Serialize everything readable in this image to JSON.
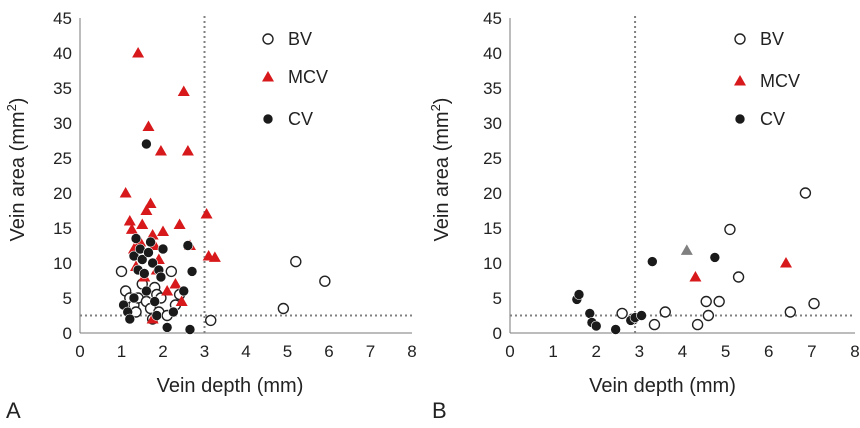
{
  "chart_data": [
    {
      "panel_label": "A",
      "type": "scatter",
      "xlabel": "Vein depth (mm)",
      "ylabel_main": "Vein area (mm",
      "ylabel_sup": "2",
      "ylabel_close": ")",
      "xlim": [
        0,
        8
      ],
      "ylim": [
        0,
        45
      ],
      "xticks": [
        "0",
        "1",
        "2",
        "3",
        "4",
        "5",
        "6",
        "7",
        "8"
      ],
      "yticks": [
        "0",
        "5",
        "10",
        "15",
        "20",
        "25",
        "30",
        "35",
        "40",
        "45"
      ],
      "ref_x": 3.0,
      "ref_y": 2.5,
      "legend_position": "top-right",
      "series": [
        {
          "name": "BV",
          "marker": "open-circle",
          "color": "#222222",
          "points": [
            [
              1.0,
              8.8
            ],
            [
              1.1,
              6.0
            ],
            [
              1.2,
              5.0
            ],
            [
              1.3,
              4.0
            ],
            [
              1.35,
              3.0
            ],
            [
              1.4,
              5.0
            ],
            [
              1.5,
              7.0
            ],
            [
              1.6,
              4.5
            ],
            [
              1.7,
              3.5
            ],
            [
              1.75,
              2.0
            ],
            [
              1.8,
              6.5
            ],
            [
              1.85,
              5.5
            ],
            [
              1.9,
              3.0
            ],
            [
              1.95,
              5.0
            ],
            [
              2.1,
              2.5
            ],
            [
              2.2,
              8.8
            ],
            [
              2.3,
              4.0
            ],
            [
              2.4,
              5.5
            ],
            [
              3.15,
              1.8
            ],
            [
              4.9,
              3.5
            ],
            [
              5.2,
              10.2
            ],
            [
              5.9,
              7.4
            ]
          ]
        },
        {
          "name": "MCV",
          "marker": "triangle",
          "color": "#d7191c",
          "points": [
            [
              1.1,
              20.0
            ],
            [
              1.2,
              16.0
            ],
            [
              1.25,
              14.8
            ],
            [
              1.3,
              12.0
            ],
            [
              1.35,
              9.5
            ],
            [
              1.4,
              40.0
            ],
            [
              1.45,
              13.0
            ],
            [
              1.5,
              15.5
            ],
            [
              1.55,
              8.0
            ],
            [
              1.6,
              17.5
            ],
            [
              1.65,
              29.5
            ],
            [
              1.7,
              18.5
            ],
            [
              1.75,
              14.0
            ],
            [
              1.8,
              12.5
            ],
            [
              1.85,
              9.0
            ],
            [
              1.9,
              10.5
            ],
            [
              1.95,
              26.0
            ],
            [
              2.0,
              14.5
            ],
            [
              2.1,
              6.0
            ],
            [
              2.3,
              7.0
            ],
            [
              2.4,
              15.5
            ],
            [
              2.5,
              34.5
            ],
            [
              2.6,
              26.0
            ],
            [
              2.65,
              12.5
            ],
            [
              3.05,
              17.0
            ],
            [
              3.1,
              11.0
            ],
            [
              3.25,
              10.8
            ],
            [
              2.45,
              4.5
            ],
            [
              1.75,
              2.0
            ]
          ]
        },
        {
          "name": "CV",
          "marker": "filled-circle",
          "color": "#1a1a1a",
          "points": [
            [
              1.05,
              4.0
            ],
            [
              1.15,
              3.0
            ],
            [
              1.2,
              2.0
            ],
            [
              1.3,
              11.0
            ],
            [
              1.35,
              13.5
            ],
            [
              1.4,
              9.0
            ],
            [
              1.45,
              12.0
            ],
            [
              1.5,
              10.5
            ],
            [
              1.55,
              8.5
            ],
            [
              1.6,
              27.0
            ],
            [
              1.65,
              11.5
            ],
            [
              1.7,
              13.0
            ],
            [
              1.75,
              10.0
            ],
            [
              1.8,
              4.5
            ],
            [
              1.85,
              2.5
            ],
            [
              1.9,
              9.0
            ],
            [
              1.95,
              8.0
            ],
            [
              2.0,
              12.0
            ],
            [
              2.1,
              0.8
            ],
            [
              2.25,
              3.0
            ],
            [
              2.5,
              6.0
            ],
            [
              2.6,
              12.5
            ],
            [
              2.65,
              0.5
            ],
            [
              2.7,
              8.8
            ],
            [
              1.3,
              5.0
            ],
            [
              1.6,
              6.0
            ]
          ]
        }
      ]
    },
    {
      "panel_label": "B",
      "type": "scatter",
      "xlabel": "Vein depth (mm)",
      "ylabel_main": "Vein area (mm",
      "ylabel_sup": "2",
      "ylabel_close": ")",
      "xlim": [
        0,
        8
      ],
      "ylim": [
        0,
        45
      ],
      "xticks": [
        "0",
        "1",
        "2",
        "3",
        "4",
        "5",
        "6",
        "7",
        "8"
      ],
      "yticks": [
        "0",
        "5",
        "10",
        "15",
        "20",
        "25",
        "30",
        "35",
        "40",
        "45"
      ],
      "ref_x": 2.9,
      "ref_y": 2.5,
      "legend_position": "top-right",
      "series": [
        {
          "name": "BV",
          "marker": "open-circle",
          "color": "#222222",
          "points": [
            [
              2.85,
              2.0
            ],
            [
              3.35,
              1.2
            ],
            [
              3.6,
              3.0
            ],
            [
              4.35,
              1.2
            ],
            [
              4.55,
              4.5
            ],
            [
              4.6,
              2.5
            ],
            [
              4.85,
              4.5
            ],
            [
              5.1,
              14.8
            ],
            [
              5.3,
              8.0
            ],
            [
              6.5,
              3.0
            ],
            [
              6.85,
              20.0
            ],
            [
              7.05,
              4.2
            ],
            [
              2.6,
              2.8
            ]
          ]
        },
        {
          "name": "MCV",
          "marker": "triangle",
          "color": "#d7191c",
          "points": [
            [
              4.3,
              8.0
            ],
            [
              6.4,
              10.0
            ]
          ]
        },
        {
          "name": "",
          "marker": "triangle",
          "color": "#808080",
          "points": [
            [
              4.1,
              11.8
            ]
          ]
        },
        {
          "name": "CV",
          "marker": "filled-circle",
          "color": "#1a1a1a",
          "points": [
            [
              1.55,
              4.8
            ],
            [
              1.6,
              5.5
            ],
            [
              1.85,
              2.8
            ],
            [
              1.9,
              1.5
            ],
            [
              2.0,
              1.0
            ],
            [
              2.45,
              0.5
            ],
            [
              2.8,
              1.8
            ],
            [
              2.9,
              2.2
            ],
            [
              3.05,
              2.5
            ],
            [
              3.3,
              10.2
            ],
            [
              4.75,
              10.8
            ]
          ]
        }
      ]
    }
  ]
}
